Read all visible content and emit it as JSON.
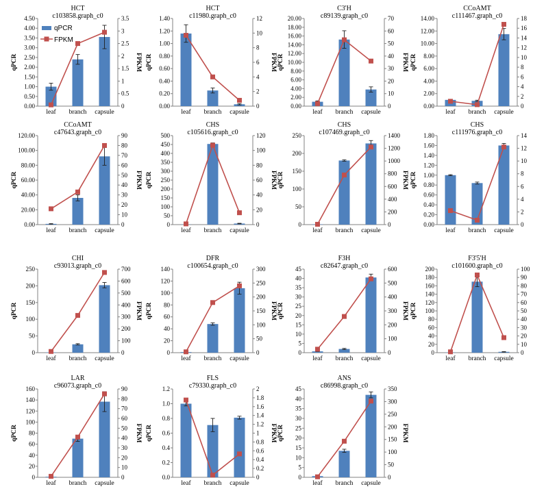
{
  "colors": {
    "bar": "#4f81bd",
    "line": "#c0504d",
    "error": "#1f1f1f",
    "axis": "#808080"
  },
  "legend": {
    "bar_label": "qPCR",
    "line_label": "FPKM",
    "position": "top-left of first panel"
  },
  "chart_data": [
    {
      "type": "bar",
      "title": "HCT",
      "subtitle": "c103858.graph_c0",
      "categories": [
        "leaf",
        "branch",
        "capsule"
      ],
      "ylabel": "qPCR",
      "y2label": "FPKM",
      "ylim": [
        0,
        4.5
      ],
      "yticks": [
        "0.00",
        "0.50",
        "1.00",
        "1.50",
        "2.00",
        "2.50",
        "3.00",
        "3.50",
        "4.00",
        "4.50"
      ],
      "y2lim": [
        0,
        3.5
      ],
      "y2ticks": [
        "0",
        "0.5",
        "1",
        "1.5",
        "2",
        "2.5",
        "3",
        "3.5"
      ],
      "series": [
        {
          "name": "qPCR",
          "values": [
            1.0,
            2.4,
            3.55
          ],
          "errors": [
            0.18,
            0.25,
            0.6
          ]
        },
        {
          "name": "FPKM",
          "values": [
            0.05,
            2.5,
            2.95
          ]
        }
      ]
    },
    {
      "type": "bar",
      "title": "HCT",
      "subtitle": "c11980.graph_c0",
      "categories": [
        "leaf",
        "branch",
        "capsule"
      ],
      "ylabel": "qPCR",
      "y2label": "FPKM",
      "ylim": [
        0,
        1.4
      ],
      "yticks": [
        "0.00",
        "0.20",
        "0.40",
        "0.60",
        "0.80",
        "1.00",
        "1.20",
        "1.40"
      ],
      "y2lim": [
        0,
        12
      ],
      "y2ticks": [
        "0",
        "2",
        "4",
        "6",
        "8",
        "10",
        "12"
      ],
      "series": [
        {
          "name": "qPCR",
          "values": [
            1.16,
            0.25,
            0.03
          ],
          "errors": [
            0.14,
            0.04,
            0.01
          ]
        },
        {
          "name": "FPKM",
          "values": [
            9.7,
            4.0,
            0.8
          ]
        }
      ]
    },
    {
      "type": "bar",
      "title": "C3'H",
      "subtitle": "c89139.graph_c0",
      "categories": [
        "leaf",
        "branch",
        "capsule"
      ],
      "ylabel": "qPCR",
      "y2label": "FPKM",
      "ylim": [
        0,
        20
      ],
      "yticks": [
        "0.00",
        "2.00",
        "4.00",
        "6.00",
        "8.00",
        "10.00",
        "12.00",
        "14.00",
        "16.00",
        "18.00",
        "20.00"
      ],
      "y2lim": [
        0,
        70
      ],
      "y2ticks": [
        "0",
        "10",
        "20",
        "30",
        "40",
        "50",
        "60",
        "70"
      ],
      "series": [
        {
          "name": "qPCR",
          "values": [
            1.0,
            15.2,
            3.8
          ],
          "errors": [
            0.2,
            2.0,
            0.6
          ]
        },
        {
          "name": "FPKM",
          "values": [
            2,
            53,
            36
          ]
        }
      ]
    },
    {
      "type": "bar",
      "title": "CCoAMT",
      "subtitle": "c111467.graph_c0",
      "categories": [
        "leaf",
        "branch",
        "capsule"
      ],
      "ylabel": "qPCR",
      "y2label": "FPKM",
      "ylim": [
        0,
        14
      ],
      "yticks": [
        "0.00",
        "2.00",
        "4.00",
        "6.00",
        "8.00",
        "10.00",
        "12.00",
        "14.00"
      ],
      "y2lim": [
        0,
        18
      ],
      "y2ticks": [
        "0",
        "2",
        "4",
        "6",
        "8",
        "10",
        "12",
        "14",
        "16",
        "18"
      ],
      "series": [
        {
          "name": "qPCR",
          "values": [
            1.0,
            0.85,
            11.5
          ],
          "errors": [
            0.1,
            0.1,
            0.9
          ]
        },
        {
          "name": "FPKM",
          "values": [
            1.0,
            0.3,
            16.8
          ]
        }
      ]
    },
    {
      "type": "bar",
      "title": "CCoAMT",
      "subtitle": "c47643.graph_c0",
      "categories": [
        "leaf",
        "branch",
        "capsule"
      ],
      "ylabel": "qPCR",
      "y2label": "FPKM",
      "ylim": [
        0,
        120
      ],
      "yticks": [
        "0.00",
        "20.00",
        "40.00",
        "60.00",
        "80.00",
        "100.00",
        "120.00"
      ],
      "y2lim": [
        0,
        90
      ],
      "y2ticks": [
        "0",
        "10",
        "20",
        "30",
        "40",
        "50",
        "60",
        "70",
        "80",
        "90"
      ],
      "series": [
        {
          "name": "qPCR",
          "values": [
            1.0,
            36,
            92
          ],
          "errors": [
            0.3,
            4,
            12
          ]
        },
        {
          "name": "FPKM",
          "values": [
            16,
            33,
            80
          ]
        }
      ]
    },
    {
      "type": "bar",
      "title": "CHS",
      "subtitle": "c105616.graph_c0",
      "categories": [
        "leaf",
        "branch",
        "capsule"
      ],
      "ylabel": "qPCR",
      "y2label": "FPKM",
      "ylim": [
        0,
        500
      ],
      "yticks": [
        "0",
        "50",
        "100",
        "150",
        "200",
        "250",
        "300",
        "350",
        "400",
        "450",
        "500"
      ],
      "y2lim": [
        0,
        120
      ],
      "y2ticks": [
        "0",
        "20",
        "40",
        "60",
        "80",
        "100",
        "120"
      ],
      "series": [
        {
          "name": "qPCR",
          "values": [
            1.0,
            453,
            6
          ],
          "errors": [
            0.3,
            6,
            1.5
          ]
        },
        {
          "name": "FPKM",
          "values": [
            1,
            107,
            16
          ]
        }
      ]
    },
    {
      "type": "bar",
      "title": "CHS",
      "subtitle": "c107469.graph_c0",
      "categories": [
        "leaf",
        "branch",
        "capsule"
      ],
      "ylabel": "qPCR",
      "y2label": "FPKM",
      "ylim": [
        0,
        250
      ],
      "yticks": [
        "0",
        "50",
        "100",
        "150",
        "200",
        "250"
      ],
      "y2lim": [
        0,
        1400
      ],
      "y2ticks": [
        "0",
        "200",
        "400",
        "600",
        "800",
        "1000",
        "1200",
        "1400"
      ],
      "series": [
        {
          "name": "qPCR",
          "values": [
            1.0,
            180,
            228
          ],
          "errors": [
            0.3,
            2,
            8
          ]
        },
        {
          "name": "FPKM",
          "values": [
            5,
            780,
            1220
          ]
        }
      ]
    },
    {
      "type": "bar",
      "title": "CHS",
      "subtitle": "c111976.graph_c0",
      "categories": [
        "leaf",
        "branch",
        "capsule"
      ],
      "ylabel": "qPCR",
      "y2label": "FPKM",
      "ylim": [
        0,
        1.8
      ],
      "yticks": [
        "0.00",
        "0.20",
        "0.40",
        "0.60",
        "0.80",
        "1.00",
        "1.20",
        "1.40",
        "1.60",
        "1.80"
      ],
      "y2lim": [
        0,
        14
      ],
      "y2ticks": [
        "0",
        "2",
        "4",
        "6",
        "8",
        "10",
        "12",
        "14"
      ],
      "series": [
        {
          "name": "qPCR",
          "values": [
            1.0,
            0.84,
            1.6
          ],
          "errors": [
            0.01,
            0.02,
            0.04
          ]
        },
        {
          "name": "FPKM",
          "values": [
            2.2,
            0.7,
            12.2
          ]
        }
      ]
    },
    {
      "type": "bar",
      "title": "CHI",
      "subtitle": "c93013.graph_c0",
      "categories": [
        "leaf",
        "branch",
        "capsule"
      ],
      "ylabel": "qPCR",
      "y2label": "FPKM",
      "ylim": [
        0,
        250
      ],
      "yticks": [
        "0",
        "50",
        "100",
        "150",
        "200",
        "250"
      ],
      "y2lim": [
        0,
        700
      ],
      "y2ticks": [
        "0",
        "100",
        "200",
        "300",
        "400",
        "500",
        "600",
        "700"
      ],
      "series": [
        {
          "name": "qPCR",
          "values": [
            1.0,
            25,
            202
          ],
          "errors": [
            0.3,
            2,
            8
          ]
        },
        {
          "name": "FPKM",
          "values": [
            10,
            312,
            672
          ]
        }
      ]
    },
    {
      "type": "bar",
      "title": "DFR",
      "subtitle": "c100654.graph_c0",
      "categories": [
        "leaf",
        "branch",
        "capsule"
      ],
      "ylabel": "qPCR",
      "y2label": "FPKM",
      "ylim": [
        0,
        140
      ],
      "yticks": [
        "0",
        "20",
        "40",
        "60",
        "80",
        "100",
        "120",
        "140"
      ],
      "y2lim": [
        0,
        300
      ],
      "y2ticks": [
        "0",
        "50",
        "100",
        "150",
        "200",
        "250",
        "300"
      ],
      "series": [
        {
          "name": "qPCR",
          "values": [
            1.0,
            48,
            108
          ],
          "errors": [
            0.3,
            2,
            10
          ]
        },
        {
          "name": "FPKM",
          "values": [
            3,
            180,
            240
          ]
        }
      ]
    },
    {
      "type": "bar",
      "title": "F3H",
      "subtitle": "c82647.graph_c0",
      "categories": [
        "leaf",
        "branch",
        "capsule"
      ],
      "ylabel": "qPCR",
      "y2label": "FPKM",
      "ylim": [
        0,
        45
      ],
      "yticks": [
        "0",
        "5",
        "10",
        "15",
        "20",
        "25",
        "30",
        "35",
        "40",
        "45"
      ],
      "y2lim": [
        0,
        600
      ],
      "y2ticks": [
        "0",
        "100",
        "200",
        "300",
        "400",
        "500",
        "600"
      ],
      "series": [
        {
          "name": "qPCR",
          "values": [
            0.7,
            2.0,
            40.5
          ],
          "errors": [
            0.1,
            0.3,
            1.8
          ]
        },
        {
          "name": "FPKM",
          "values": [
            25,
            260,
            530
          ]
        }
      ]
    },
    {
      "type": "bar",
      "title": "F3'5'H",
      "subtitle": "c101600.graph_c0",
      "categories": [
        "leaf",
        "branch",
        "capsule"
      ],
      "ylabel": "qPCR",
      "y2label": "FPKM",
      "ylim": [
        0,
        200
      ],
      "yticks": [
        "0",
        "20",
        "40",
        "60",
        "80",
        "100",
        "120",
        "140",
        "160",
        "180",
        "200"
      ],
      "y2lim": [
        0,
        100
      ],
      "y2ticks": [
        "0",
        "10",
        "20",
        "30",
        "40",
        "50",
        "60",
        "70",
        "80",
        "90",
        "100"
      ],
      "series": [
        {
          "name": "qPCR",
          "values": [
            0.5,
            170,
            2
          ],
          "errors": [
            0.2,
            12,
            0.5
          ]
        },
        {
          "name": "FPKM",
          "values": [
            1,
            93,
            18
          ]
        }
      ]
    },
    {
      "type": "bar",
      "title": "LAR",
      "subtitle": "c96073.graph_c0",
      "categories": [
        "leaf",
        "branch",
        "capsule"
      ],
      "ylabel": "qPCR",
      "y2label": "FPKM",
      "ylim": [
        0,
        160
      ],
      "yticks": [
        "0",
        "20",
        "40",
        "60",
        "80",
        "100",
        "120",
        "140",
        "160"
      ],
      "y2lim": [
        0,
        90
      ],
      "y2ticks": [
        "0",
        "10",
        "20",
        "30",
        "40",
        "50",
        "60",
        "70",
        "80",
        "90"
      ],
      "series": [
        {
          "name": "qPCR",
          "values": [
            1.0,
            70,
            137
          ],
          "errors": [
            0.3,
            5,
            18
          ]
        },
        {
          "name": "FPKM",
          "values": [
            1,
            41,
            85
          ]
        }
      ]
    },
    {
      "type": "bar",
      "title": "FLS",
      "subtitle": "c79330.graph_c0",
      "categories": [
        "leaf",
        "branch",
        "capsule"
      ],
      "ylabel": "qPCR",
      "y2label": "FPKM",
      "ylim": [
        0,
        1.2
      ],
      "yticks": [
        "0.0",
        "0.2",
        "0.4",
        "0.6",
        "0.8",
        "1.0",
        "1.2"
      ],
      "y2lim": [
        0,
        2
      ],
      "y2ticks": [
        "0",
        "0.2",
        "0.4",
        "0.6",
        "0.8",
        "1",
        "1.2",
        "1.4",
        "1.6",
        "1.8",
        "2"
      ],
      "series": [
        {
          "name": "qPCR",
          "values": [
            1.0,
            0.71,
            0.81
          ],
          "errors": [
            0.03,
            0.09,
            0.02
          ]
        },
        {
          "name": "FPKM",
          "values": [
            1.75,
            0.05,
            0.53
          ]
        }
      ]
    },
    {
      "type": "bar",
      "title": "ANS",
      "subtitle": "c86998.graph_c0",
      "categories": [
        "leaf",
        "branch",
        "capsule"
      ],
      "ylabel": "qPCR",
      "y2label": "FPKM",
      "ylim": [
        0,
        45
      ],
      "yticks": [
        "0",
        "5",
        "10",
        "15",
        "20",
        "25",
        "30",
        "35",
        "40",
        "45"
      ],
      "y2lim": [
        0,
        350
      ],
      "y2ticks": [
        "0",
        "50",
        "100",
        "150",
        "200",
        "250",
        "300",
        "350"
      ],
      "series": [
        {
          "name": "qPCR",
          "values": [
            0.6,
            13.5,
            42
          ],
          "errors": [
            0.2,
            0.8,
            1.5
          ]
        },
        {
          "name": "FPKM",
          "values": [
            2,
            143,
            302
          ]
        }
      ]
    }
  ]
}
